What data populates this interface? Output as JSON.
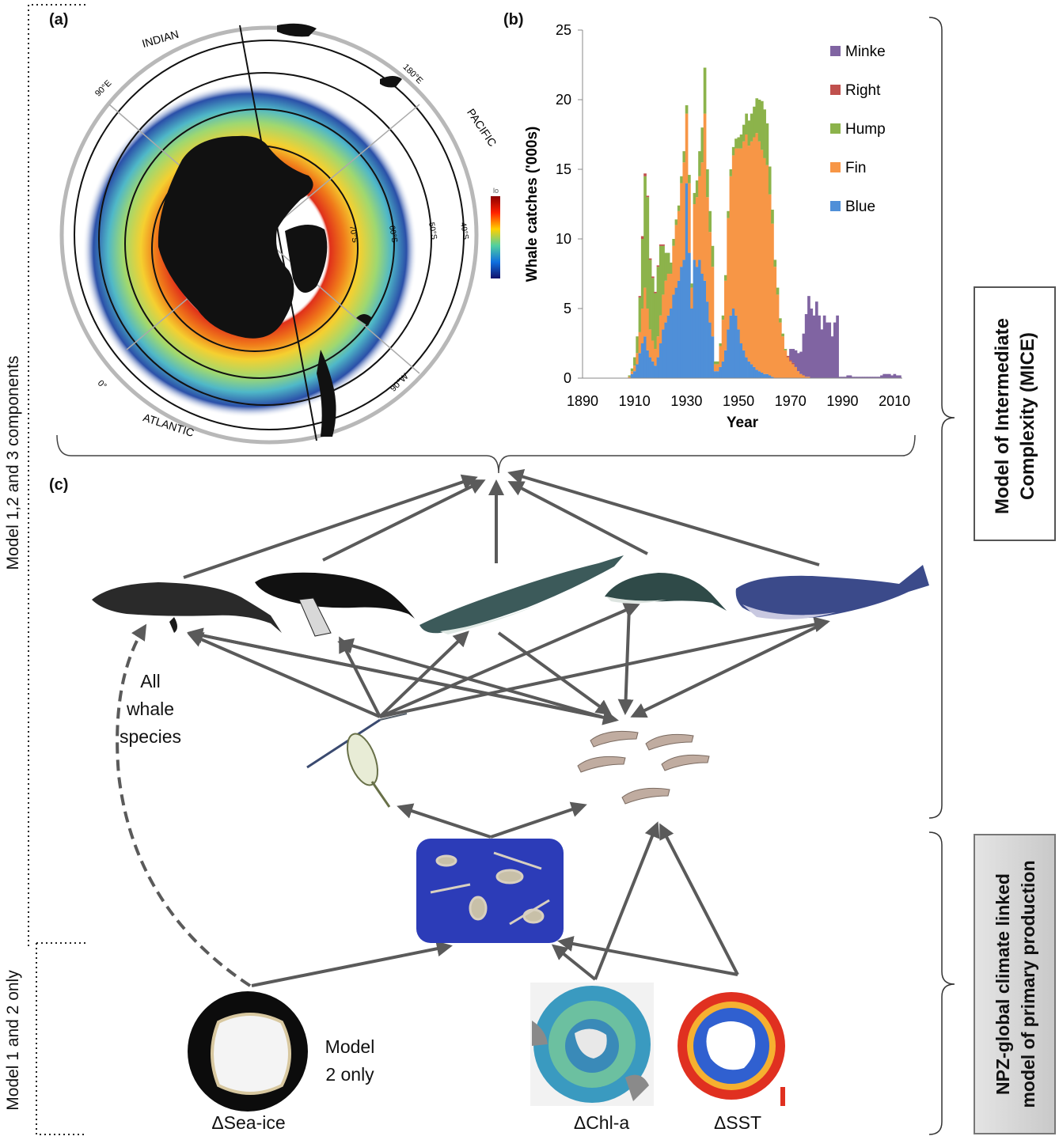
{
  "panels": {
    "a": "(a)",
    "b": "(b)",
    "c": "(c)"
  },
  "map": {
    "ocean_labels": [
      "INDIAN",
      "PACIFIC",
      "ATLANTIC"
    ],
    "longitude_labels": [
      "90°E",
      "180°E",
      "90°W",
      "0°"
    ],
    "latitude_labels": [
      "70°S",
      "60°S",
      "50°S",
      "40°S"
    ],
    "colorbar_label": "lo"
  },
  "chart_data": {
    "type": "bar",
    "stacked": true,
    "xlabel": "Year",
    "ylabel": "Whale catches ('000s)",
    "ylim": [
      0,
      25
    ],
    "yticks": [
      0,
      5,
      10,
      15,
      20,
      25
    ],
    "xticks": [
      1890,
      1910,
      1930,
      1950,
      1970,
      1990,
      2010
    ],
    "xlim": [
      1890,
      2013
    ],
    "legend_position": "top-right",
    "colors": {
      "Minke": "#8064a2",
      "Right": "#c0504d",
      "Hump": "#8cb34b",
      "Fin": "#f79646",
      "Blue": "#4f8fd8"
    },
    "series_order": [
      "Blue",
      "Fin",
      "Hump",
      "Right",
      "Minke"
    ],
    "legend_order": [
      "Minke",
      "Right",
      "Hump",
      "Fin",
      "Blue"
    ],
    "years": [
      1904,
      1905,
      1906,
      1907,
      1908,
      1909,
      1910,
      1911,
      1912,
      1913,
      1914,
      1915,
      1916,
      1917,
      1918,
      1919,
      1920,
      1921,
      1922,
      1923,
      1924,
      1925,
      1926,
      1927,
      1928,
      1929,
      1930,
      1931,
      1932,
      1933,
      1934,
      1935,
      1936,
      1937,
      1938,
      1939,
      1940,
      1941,
      1942,
      1943,
      1944,
      1945,
      1946,
      1947,
      1948,
      1949,
      1950,
      1951,
      1952,
      1953,
      1954,
      1955,
      1956,
      1957,
      1958,
      1959,
      1960,
      1961,
      1962,
      1963,
      1964,
      1965,
      1966,
      1967,
      1968,
      1969,
      1970,
      1971,
      1972,
      1973,
      1974,
      1975,
      1976,
      1977,
      1978,
      1979,
      1980,
      1981,
      1982,
      1983,
      1984,
      1985,
      1986,
      1987,
      1988,
      1989,
      1990,
      1991,
      1992,
      1993,
      1994,
      1995,
      1996,
      1997,
      1998,
      1999,
      2000,
      2001,
      2002,
      2003,
      2004,
      2005,
      2006,
      2007,
      2008,
      2009,
      2010,
      2011,
      2012
    ],
    "series": [
      {
        "name": "Blue",
        "values": [
          0,
          0,
          0,
          0,
          0,
          0.3,
          0.5,
          1.0,
          1.8,
          2.5,
          3.0,
          2.0,
          1.5,
          1.2,
          0.9,
          1.5,
          2.5,
          3.5,
          4.0,
          4.5,
          5.0,
          6.0,
          6.5,
          7.0,
          8.0,
          8.5,
          14.0,
          9.0,
          5.0,
          8.5,
          8.0,
          8.5,
          7.5,
          7.0,
          5.5,
          4.0,
          3.0,
          0.5,
          0.5,
          0.8,
          1.2,
          2.0,
          3.5,
          4.5,
          5.0,
          4.5,
          3.5,
          2.5,
          2.0,
          1.5,
          1.2,
          1.0,
          0.8,
          0.6,
          0.5,
          0.4,
          0.3,
          0.3,
          0.2,
          0.1,
          0,
          0,
          0,
          0,
          0,
          0,
          0,
          0,
          0,
          0,
          0,
          0,
          0,
          0,
          0,
          0,
          0,
          0,
          0,
          0,
          0,
          0,
          0,
          0,
          0,
          0,
          0,
          0,
          0,
          0,
          0,
          0,
          0,
          0,
          0,
          0,
          0,
          0,
          0,
          0,
          0,
          0,
          0,
          0,
          0,
          0,
          0,
          0,
          0
        ]
      },
      {
        "name": "Fin",
        "values": [
          0,
          0,
          0,
          0,
          0.1,
          0.2,
          0.4,
          0.8,
          1.5,
          2.5,
          3.5,
          3.0,
          2.0,
          1.5,
          1.2,
          1.5,
          2.0,
          2.5,
          3.0,
          3.0,
          2.5,
          3.5,
          4.5,
          5.0,
          6.0,
          7.0,
          5.0,
          5.0,
          1.5,
          4.0,
          5.0,
          6.0,
          8.0,
          12.0,
          7.5,
          6.5,
          5.0,
          0.5,
          0.5,
          1.5,
          3.0,
          5.0,
          8.0,
          10.0,
          11.0,
          12.0,
          13.0,
          14.0,
          15.0,
          16.0,
          15.5,
          16.0,
          16.5,
          17.0,
          16.5,
          16.0,
          15.5,
          15.0,
          13.0,
          11.0,
          8.0,
          6.0,
          4.0,
          3.0,
          2.0,
          1.5,
          1.2,
          1.0,
          0.8,
          0.5,
          0.3,
          0.2,
          0.1,
          0.1,
          0,
          0,
          0,
          0,
          0,
          0,
          0,
          0,
          0,
          0,
          0,
          0,
          0,
          0,
          0,
          0,
          0,
          0,
          0,
          0,
          0,
          0,
          0,
          0,
          0,
          0,
          0,
          0,
          0,
          0,
          0,
          0,
          0,
          0,
          0
        ]
      },
      {
        "name": "Hump",
        "values": [
          0,
          0,
          0,
          0,
          0.1,
          0.2,
          0.6,
          1.2,
          2.5,
          5.0,
          8.0,
          8.0,
          5.0,
          4.5,
          4.0,
          5.0,
          5.0,
          3.5,
          2.0,
          1.5,
          0.8,
          0.5,
          0.4,
          0.4,
          0.5,
          0.8,
          0.6,
          0.6,
          0.3,
          0.8,
          1.2,
          1.8,
          2.5,
          3.3,
          2.0,
          1.5,
          1.5,
          0.2,
          0.2,
          0.2,
          0.3,
          0.4,
          0.5,
          0.5,
          0.6,
          0.7,
          0.8,
          1.0,
          1.2,
          1.5,
          1.8,
          2.0,
          2.2,
          2.5,
          3.0,
          3.5,
          3.5,
          3.0,
          2.0,
          1.0,
          0.5,
          0.5,
          0.3,
          0.2,
          0.1,
          0,
          0,
          0,
          0,
          0,
          0,
          0,
          0,
          0,
          0,
          0,
          0,
          0,
          0,
          0,
          0,
          0,
          0,
          0,
          0,
          0,
          0,
          0,
          0,
          0,
          0,
          0,
          0,
          0,
          0,
          0,
          0,
          0,
          0,
          0,
          0,
          0,
          0,
          0,
          0,
          0,
          0,
          0,
          0
        ]
      },
      {
        "name": "Right",
        "values": [
          0,
          0,
          0,
          0,
          0,
          0,
          0,
          0,
          0.1,
          0.2,
          0.2,
          0.1,
          0.1,
          0.1,
          0.1,
          0.1,
          0.1,
          0.1,
          0,
          0,
          0,
          0,
          0,
          0,
          0,
          0,
          0,
          0,
          0,
          0,
          0,
          0,
          0,
          0,
          0,
          0,
          0,
          0,
          0,
          0,
          0,
          0,
          0,
          0,
          0,
          0,
          0,
          0,
          0,
          0,
          0,
          0,
          0,
          0,
          0,
          0,
          0,
          0,
          0,
          0,
          0,
          0,
          0,
          0,
          0,
          0.1,
          0.1,
          0.1,
          0,
          0,
          0,
          0,
          0,
          0,
          0,
          0,
          0,
          0,
          0,
          0,
          0,
          0,
          0,
          0,
          0,
          0,
          0,
          0,
          0,
          0,
          0,
          0,
          0,
          0,
          0,
          0,
          0,
          0,
          0,
          0,
          0,
          0,
          0,
          0,
          0,
          0,
          0,
          0,
          0
        ]
      },
      {
        "name": "Minke",
        "values": [
          0,
          0,
          0,
          0,
          0,
          0,
          0,
          0,
          0,
          0,
          0,
          0,
          0,
          0,
          0,
          0,
          0,
          0,
          0,
          0,
          0,
          0,
          0,
          0,
          0,
          0,
          0,
          0,
          0,
          0,
          0,
          0,
          0,
          0,
          0,
          0,
          0,
          0,
          0,
          0,
          0,
          0,
          0,
          0,
          0,
          0,
          0,
          0,
          0,
          0,
          0,
          0,
          0,
          0,
          0,
          0,
          0,
          0,
          0,
          0,
          0,
          0,
          0,
          0,
          0,
          0,
          0.8,
          1.0,
          1.2,
          1.3,
          1.6,
          3.0,
          4.5,
          5.8,
          5.0,
          4.5,
          5.5,
          4.5,
          3.5,
          4.5,
          4.0,
          4.0,
          3.0,
          4.0,
          4.5,
          0.1,
          0.1,
          0.1,
          0.2,
          0.2,
          0.1,
          0.1,
          0.1,
          0.1,
          0.1,
          0.1,
          0.1,
          0.1,
          0.1,
          0.1,
          0.1,
          0.2,
          0.3,
          0.3,
          0.3,
          0.2,
          0.3,
          0.2,
          0.2
        ]
      }
    ]
  },
  "web": {
    "all_whale_species": "All\nwhale\nspecies",
    "model_2_only": "Model\n2 only",
    "sea_ice": "ΔSea-ice",
    "chl_a": "ΔChl-a",
    "sst": "ΔSST"
  },
  "side": {
    "mice": "Model of Intermediate\nComplexity (MICE)",
    "npz": "NPZ-global climate linked\nmodel of primary production",
    "model_123": "Model 1,2 and 3 components",
    "model_12": "Model 1 and 2 only"
  }
}
